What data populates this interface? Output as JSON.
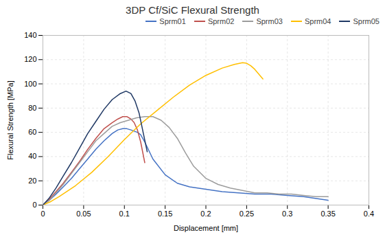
{
  "chart_data": {
    "type": "line",
    "title": "3DP Cf/SiC Flexural Strength",
    "xlabel": "Displacement [mm]",
    "ylabel": "Flexural Strength [MPa]",
    "xlim": [
      0,
      0.4
    ],
    "ylim": [
      0,
      140
    ],
    "xticks": [
      0,
      0.05,
      0.1,
      0.15,
      0.2,
      0.25,
      0.3,
      0.35,
      0.4
    ],
    "yticks": [
      0,
      20,
      40,
      60,
      80,
      100,
      120,
      140
    ],
    "grid": true,
    "legend": "upper right",
    "series": [
      {
        "name": "Sprm01",
        "color": "#4472C4",
        "x": [
          0,
          0.008,
          0.016,
          0.025,
          0.035,
          0.045,
          0.055,
          0.065,
          0.075,
          0.085,
          0.092,
          0.098,
          0.103,
          0.108,
          0.112,
          0.116,
          0.12,
          0.125,
          0.135,
          0.15,
          0.165,
          0.18,
          0.2,
          0.22,
          0.24,
          0.26,
          0.28,
          0.3,
          0.32,
          0.34,
          0.35
        ],
        "values": [
          0,
          4,
          9,
          15,
          22,
          30,
          38,
          46,
          53,
          59,
          62,
          63,
          63,
          62,
          61,
          60,
          58,
          52,
          38,
          25,
          18,
          15,
          13,
          11,
          10,
          9,
          9,
          8,
          7,
          5,
          4
        ]
      },
      {
        "name": "Sprm02",
        "color": "#C0504D",
        "x": [
          0,
          0.008,
          0.016,
          0.025,
          0.035,
          0.045,
          0.055,
          0.065,
          0.075,
          0.085,
          0.092,
          0.098,
          0.103,
          0.108,
          0.112,
          0.116,
          0.12,
          0.125
        ],
        "values": [
          0,
          5,
          11,
          18,
          27,
          36,
          46,
          55,
          63,
          68,
          71,
          73,
          73,
          71,
          68,
          62,
          52,
          35
        ]
      },
      {
        "name": "Sprm03",
        "color": "#9C9C9C",
        "x": [
          0,
          0.008,
          0.016,
          0.025,
          0.035,
          0.045,
          0.055,
          0.065,
          0.075,
          0.085,
          0.095,
          0.105,
          0.115,
          0.125,
          0.135,
          0.145,
          0.155,
          0.165,
          0.175,
          0.185,
          0.2,
          0.215,
          0.23,
          0.245,
          0.26,
          0.275,
          0.29,
          0.305,
          0.32,
          0.335,
          0.35
        ],
        "values": [
          0,
          4,
          10,
          17,
          26,
          35,
          44,
          53,
          59,
          65,
          68,
          70,
          72,
          73,
          73,
          70,
          64,
          55,
          43,
          32,
          22,
          17,
          14,
          12,
          10,
          10,
          9,
          9,
          8,
          7,
          7
        ]
      },
      {
        "name": "Sprm04",
        "color": "#FFBF00",
        "x": [
          0,
          0.01,
          0.02,
          0.04,
          0.06,
          0.08,
          0.1,
          0.12,
          0.14,
          0.16,
          0.18,
          0.2,
          0.22,
          0.235,
          0.245,
          0.25,
          0.255,
          0.26,
          0.265,
          0.27
        ],
        "values": [
          0,
          3,
          7,
          16,
          27,
          40,
          54,
          67,
          78,
          89,
          99,
          107,
          113,
          116,
          117.5,
          117,
          115,
          112,
          108,
          104
        ]
      },
      {
        "name": "Sprm05",
        "color": "#1F3864",
        "x": [
          0,
          0.008,
          0.016,
          0.025,
          0.035,
          0.045,
          0.055,
          0.065,
          0.075,
          0.085,
          0.095,
          0.102,
          0.108,
          0.113,
          0.118,
          0.123,
          0.128
        ],
        "values": [
          0,
          6,
          14,
          24,
          35,
          47,
          59,
          69,
          79,
          87,
          92,
          94,
          92,
          86,
          76,
          60,
          44
        ]
      }
    ]
  }
}
